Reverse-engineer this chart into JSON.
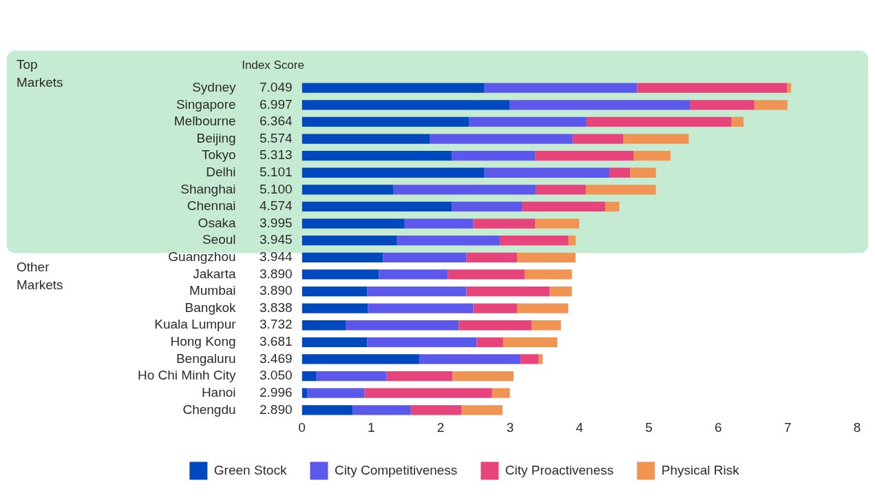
{
  "chart_data": {
    "type": "bar",
    "orientation": "horizontal",
    "stacked": true,
    "categories": [
      "Sydney",
      "Singapore",
      "Melbourne",
      "Beijing",
      "Tokyo",
      "Delhi",
      "Shanghai",
      "Chennai",
      "Osaka",
      "Seoul",
      "Guangzhou",
      "Jakarta",
      "Mumbai",
      "Bangkok",
      "Kuala Lumpur",
      "Hong Kong",
      "Bengaluru",
      "Ho Chi Minh City",
      "Hanoi",
      "Chengdu"
    ],
    "series": [
      {
        "name": "Green Stock",
        "color": "#0048bd",
        "values": [
          2.63,
          2.99,
          2.41,
          1.84,
          2.16,
          2.63,
          1.32,
          2.16,
          1.48,
          1.37,
          1.17,
          1.11,
          0.94,
          0.95,
          0.63,
          0.94,
          1.69,
          0.21,
          0.08,
          0.73
        ]
      },
      {
        "name": "City Competitiveness",
        "color": "#5d58ec",
        "values": [
          2.2,
          2.6,
          1.69,
          2.06,
          1.2,
          1.8,
          2.05,
          1.01,
          0.99,
          1.48,
          1.2,
          0.99,
          1.43,
          1.52,
          1.63,
          1.58,
          1.45,
          1.01,
          0.82,
          0.84
        ]
      },
      {
        "name": "City Proactiveness",
        "color": "#e6447b",
        "values": [
          2.16,
          0.93,
          2.09,
          0.73,
          1.42,
          0.3,
          0.72,
          1.2,
          0.89,
          0.99,
          0.73,
          1.11,
          1.2,
          0.63,
          1.05,
          0.38,
          0.27,
          0.95,
          1.84,
          0.73
        ]
      },
      {
        "name": "Physical Risk",
        "color": "#f09454",
        "values": [
          0.059,
          0.477,
          0.174,
          0.944,
          0.533,
          0.371,
          1.01,
          0.204,
          0.635,
          0.105,
          0.844,
          0.68,
          0.32,
          0.738,
          0.422,
          0.781,
          0.059,
          0.88,
          0.256,
          0.59
        ]
      }
    ],
    "totals": [
      "7.049",
      "6.997",
      "6.364",
      "5.574",
      "5.313",
      "5.101",
      "5.100",
      "4.574",
      "3.995",
      "3.945",
      "3.944",
      "3.890",
      "3.890",
      "3.838",
      "3.732",
      "3.681",
      "3.469",
      "3.050",
      "2.996",
      "2.890"
    ],
    "xlim": [
      0,
      8
    ],
    "xticks": [
      0,
      1,
      2,
      3,
      4,
      5,
      6,
      7,
      8
    ],
    "bands": [
      {
        "axis": "y",
        "from": "Sydney",
        "to": "Seoul",
        "label": "Top Markets",
        "color": "#c6ebd3"
      }
    ],
    "annotations": [
      "Index Score",
      "Other Markets"
    ],
    "grid": false,
    "legend": "bottom"
  }
}
